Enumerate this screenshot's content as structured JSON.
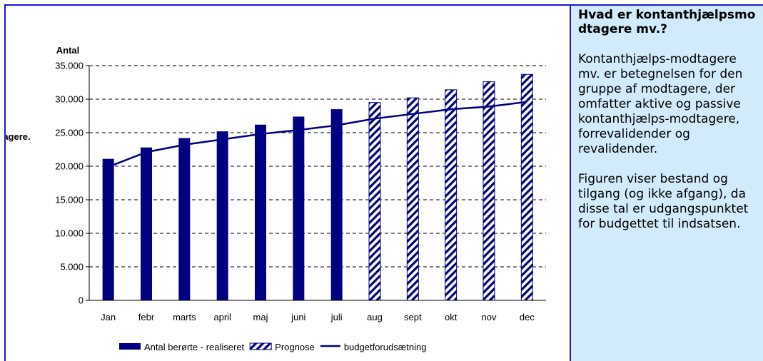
{
  "chart_data": {
    "type": "bar",
    "ylabel": "Antal",
    "side_axis_label": "tagere.",
    "categories": [
      "Jan",
      "febr",
      "marts",
      "april",
      "maj",
      "juni",
      "juli",
      "aug",
      "sept",
      "okt",
      "nov",
      "dec"
    ],
    "series": [
      {
        "name": "Antal berørte - realiseret",
        "kind": "bar",
        "style": "solid",
        "values": [
          21100,
          22800,
          24200,
          25200,
          26200,
          27400,
          28500,
          null,
          null,
          null,
          null,
          null
        ]
      },
      {
        "name": "Prognose",
        "kind": "bar",
        "style": "hatched",
        "values": [
          null,
          null,
          null,
          null,
          null,
          null,
          null,
          29500,
          30200,
          31400,
          32600,
          33700
        ]
      },
      {
        "name": "budgetforudsætning",
        "kind": "line",
        "values": [
          19900,
          22100,
          23200,
          24000,
          24800,
          25400,
          26100,
          27100,
          27800,
          28500,
          28900,
          29600
        ]
      }
    ],
    "ylim": [
      0,
      35000
    ],
    "yticks": [
      "0",
      "5.000",
      "10.000",
      "15.000",
      "20.000",
      "25.000",
      "30.000",
      "35.000"
    ],
    "grid": "horizontal dashed",
    "legend_position": "bottom",
    "colors": {
      "bar": "#000080",
      "hatch_bg": "#ffffff",
      "line": "#000080"
    }
  },
  "side_panel": {
    "title": "Hvad er kontanthjælpsmodtagere mv.?",
    "paragraph1": "Kontanthjælps-modtagere mv. er betegnelsen for den gruppe af modtagere, der omfatter aktive og passive kontanthjælps-modtagere, forrevalidender og revalidender.",
    "paragraph2": "Figuren viser bestand og tilgang (og ikke afgang), da disse tal er udgangspunktet for budgettet til indsatsen.",
    "background": "#d2ebfa"
  }
}
